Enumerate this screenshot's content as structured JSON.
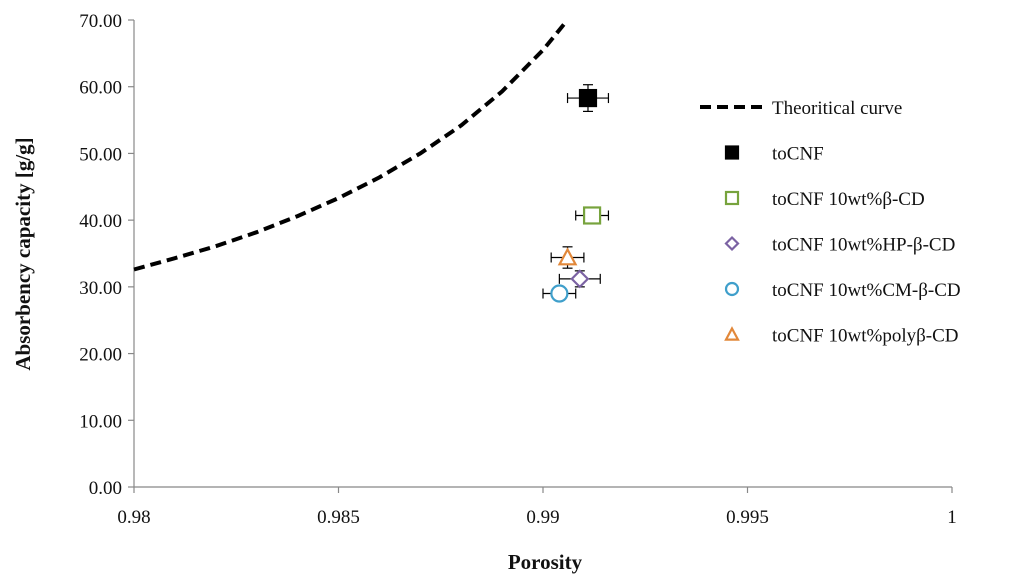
{
  "chart_data": {
    "type": "scatter",
    "title": "",
    "xlabel": "Porosity",
    "ylabel": "Absorbency capacity [g/g]",
    "xlim": [
      0.98,
      1
    ],
    "ylim": [
      0,
      70
    ],
    "x_ticks": [
      0.98,
      0.985,
      0.99,
      0.995,
      1
    ],
    "x_tick_labels": [
      "0.98",
      "0.985",
      "0.99",
      "0.995",
      "1"
    ],
    "y_ticks": [
      0,
      10,
      20,
      30,
      40,
      50,
      60,
      70
    ],
    "y_tick_labels": [
      "0.00",
      "10.00",
      "20.00",
      "30.00",
      "40.00",
      "50.00",
      "60.00",
      "70.00"
    ],
    "grid": false,
    "legend_position": "right",
    "curve": {
      "name": "Theoritical curve",
      "style": "dashed",
      "color": "#000000",
      "x": [
        0.98,
        0.981,
        0.982,
        0.983,
        0.984,
        0.985,
        0.986,
        0.987,
        0.988,
        0.989,
        0.99,
        0.9906
      ],
      "y": [
        32.6,
        34.3,
        36.1,
        38.2,
        40.6,
        43.3,
        46.4,
        50.0,
        54.2,
        59.3,
        65.5,
        70.0
      ]
    },
    "series": [
      {
        "name": "toCNF",
        "marker": "square",
        "filled": true,
        "color": "#000000",
        "x": 0.9911,
        "y": 58.3,
        "x_err": 0.0005,
        "y_err": 2.0
      },
      {
        "name": "toCNF 10wt%β-CD",
        "marker": "square",
        "filled": false,
        "color": "#77a33d",
        "x": 0.9912,
        "y": 40.7,
        "x_err": 0.0004,
        "y_err": 0.8
      },
      {
        "name": "toCNF 10wt%HP-β-CD",
        "marker": "diamond",
        "filled": false,
        "color": "#7b62a3",
        "x": 0.9909,
        "y": 31.2,
        "x_err": 0.0005,
        "y_err": 1.2
      },
      {
        "name": "toCNF 10wt%CM-β-CD",
        "marker": "circle",
        "filled": false,
        "color": "#3f9fcb",
        "x": 0.9904,
        "y": 29.0,
        "x_err": 0.0004,
        "y_err": 0.8
      },
      {
        "name": "toCNF 10wt%polyβ-CD",
        "marker": "triangle",
        "filled": false,
        "color": "#e2883a",
        "x": 0.9906,
        "y": 34.4,
        "x_err": 0.0004,
        "y_err": 1.6
      }
    ]
  }
}
